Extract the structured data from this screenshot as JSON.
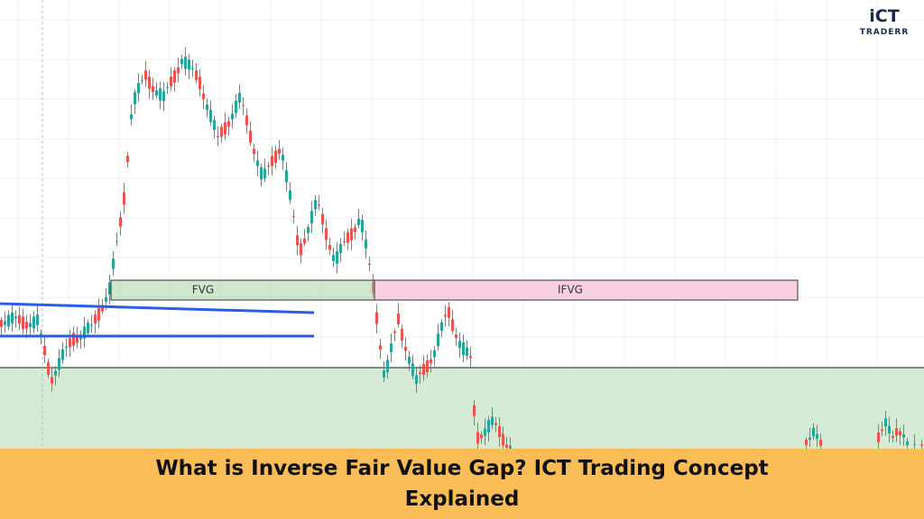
{
  "logo": {
    "mark": "iCT",
    "name": "TRADERR"
  },
  "zones": {
    "fvg": "FVG",
    "ifvg": "IFVG"
  },
  "banner": {
    "title": "What is Inverse Fair Value Gap? ICT Trading Concept Explained"
  }
}
